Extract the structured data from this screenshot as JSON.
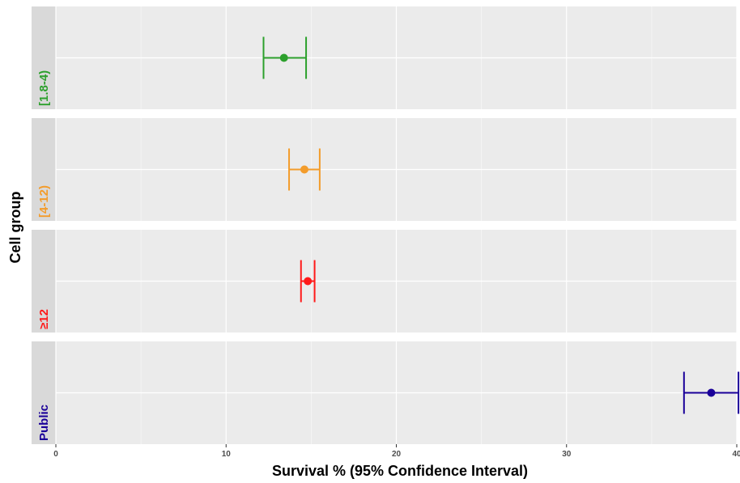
{
  "chart_data": {
    "type": "scatter",
    "title": "",
    "xlabel": "Survival % (95% Confidence Interval)",
    "ylabel": "Cell group",
    "xlim": [
      0,
      40
    ],
    "x_ticks": [
      0,
      10,
      20,
      30,
      40
    ],
    "x_tick_labels": [
      "0",
      "10",
      "20",
      "30",
      "40"
    ],
    "grid": true,
    "facets": [
      {
        "label": "[1.8-4)",
        "color": "#2ca02c",
        "estimate": 13.4,
        "lower": 12.2,
        "upper": 14.7
      },
      {
        "label": "[4-12)",
        "color": "#f39c2b",
        "estimate": 14.6,
        "lower": 13.7,
        "upper": 15.5
      },
      {
        "label": "≥12",
        "color": "#ff1a1a",
        "estimate": 14.8,
        "lower": 14.4,
        "upper": 15.2
      },
      {
        "label": "Public",
        "color": "#1a0099",
        "estimate": 38.5,
        "lower": 36.9,
        "upper": 40.1
      }
    ]
  }
}
